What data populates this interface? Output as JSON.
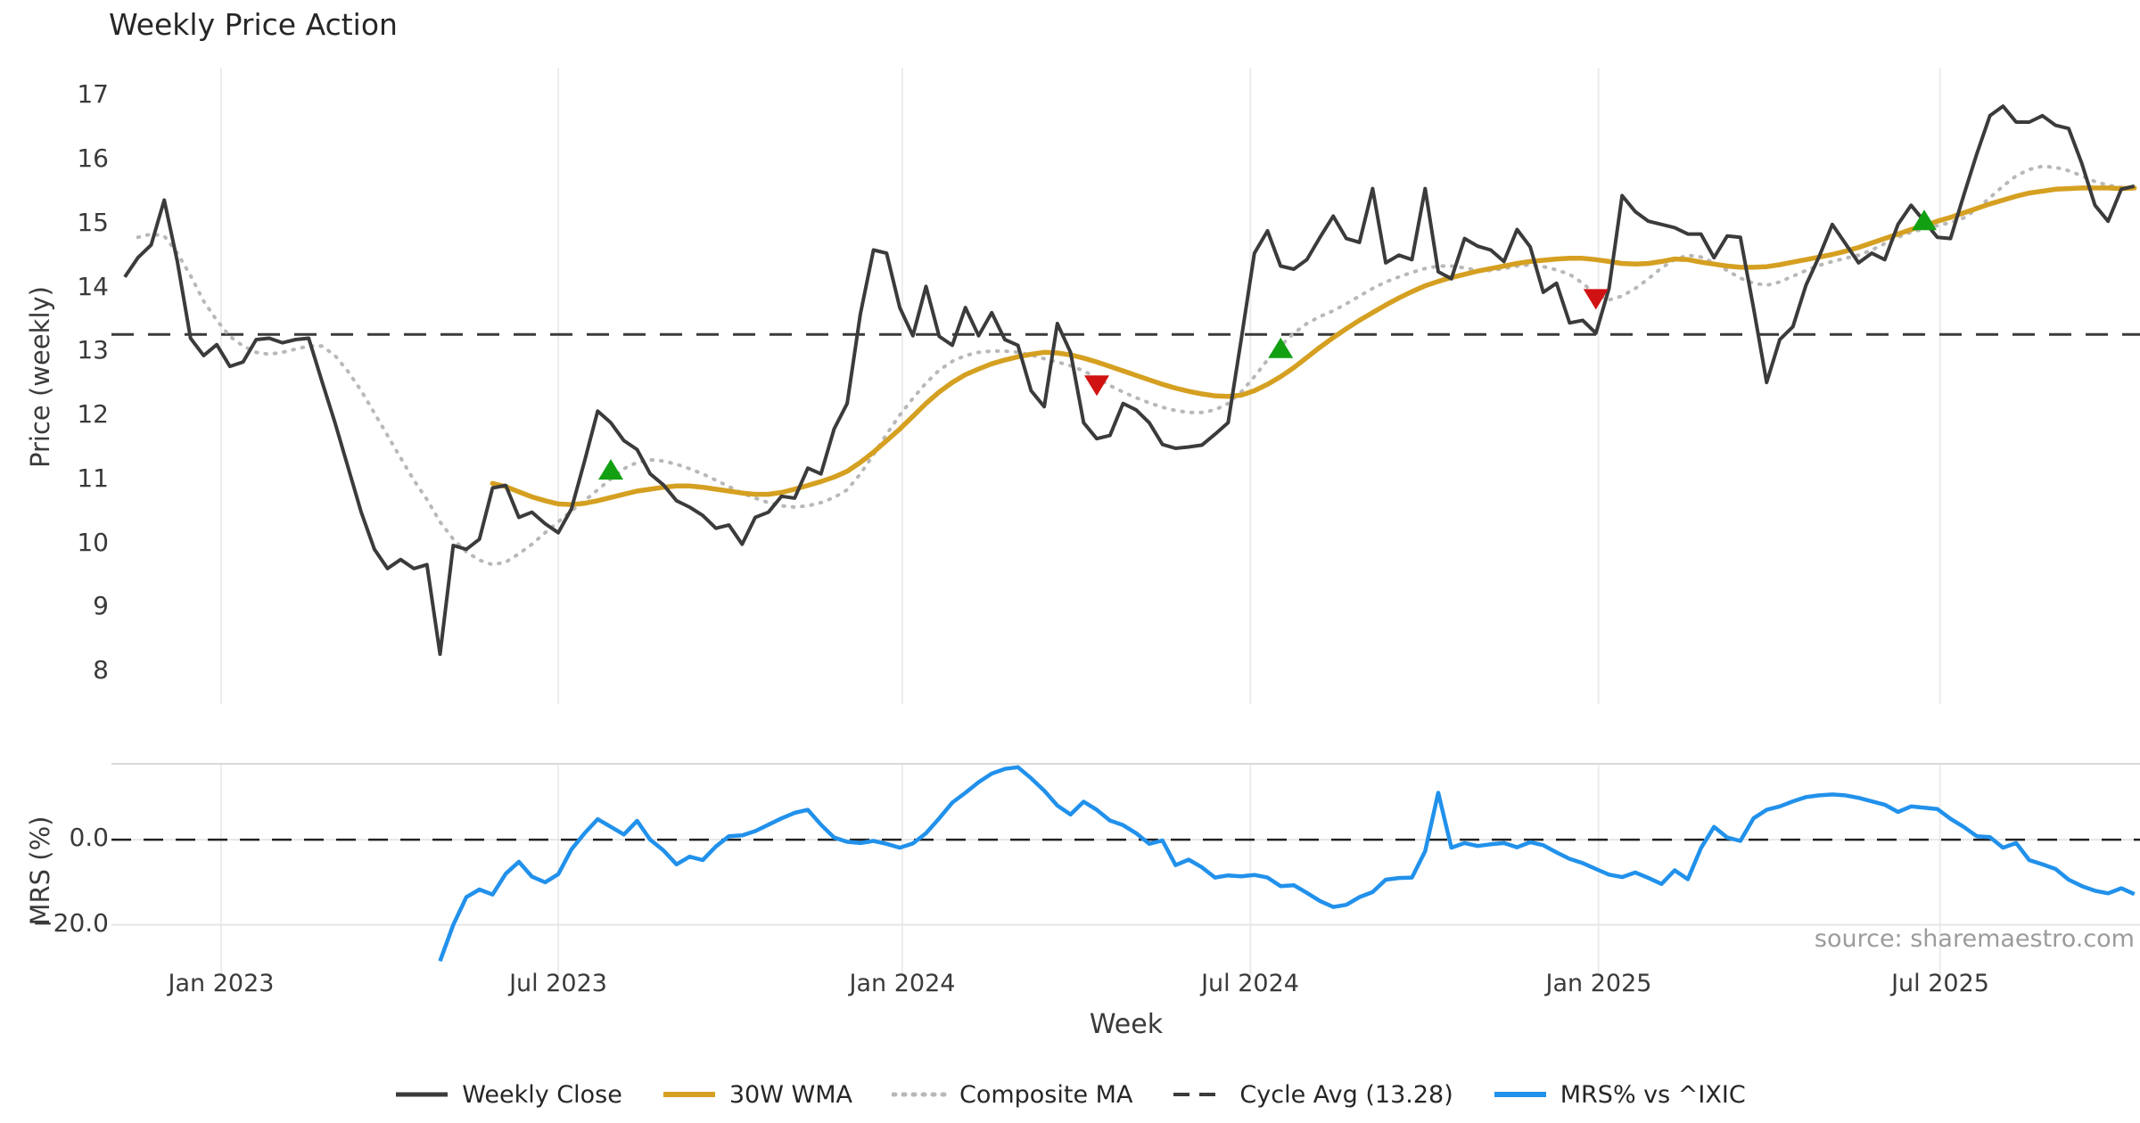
{
  "title": "Weekly Price Action",
  "source_text": "source: sharemaestro.com",
  "colors": {
    "close": "#3b3b3b",
    "wma": "#d5a021",
    "composite": "#b8b8b8",
    "cycle": "#3a3a3a",
    "mrs": "#2191eb",
    "buy": "#12a012",
    "sell": "#d11212",
    "grid": "#ececec",
    "mrs_grid": "#e6e6e6",
    "mrs_border": "#d9d9d9"
  },
  "legend": [
    {
      "label": "Weekly Close",
      "style": "solid",
      "color_key": "close",
      "width": 5
    },
    {
      "label": "30W WMA",
      "style": "solid",
      "color_key": "wma",
      "width": 6
    },
    {
      "label": "Composite MA",
      "style": "dotted",
      "color_key": "composite",
      "width": 5
    },
    {
      "label": "Cycle Avg (13.28)",
      "style": "dashed",
      "color_key": "cycle",
      "width": 4
    },
    {
      "label": "MRS% vs ^IXIC",
      "style": "solid",
      "color_key": "mrs",
      "width": 6
    }
  ],
  "chart_data": {
    "type": "line",
    "title": "Weekly Price Action",
    "xlabel": "Week",
    "x_ticks": [
      {
        "label": "Jan 2023",
        "week": 7.33
      },
      {
        "label": "Jul 2023",
        "week": 33.0
      },
      {
        "label": "Jan 2024",
        "week": 59.2
      },
      {
        "label": "Jul 2024",
        "week": 85.7
      },
      {
        "label": "Jan 2025",
        "week": 112.2
      },
      {
        "label": "Jul 2025",
        "week": 138.2
      }
    ],
    "price_panel": {
      "ylabel": "Price (weekly)",
      "ylim": [
        7.5,
        17.45
      ],
      "y_ticks": [
        8,
        9,
        10,
        11,
        12,
        13,
        14,
        15,
        16,
        17
      ],
      "cycle_avg": 13.28,
      "grid": "vertical-only",
      "series": [
        {
          "name": "Weekly Close",
          "values": [
            14.18,
            14.48,
            14.68,
            15.38,
            14.42,
            13.22,
            12.95,
            13.12,
            12.78,
            12.85,
            13.2,
            13.22,
            13.15,
            13.2,
            13.22,
            12.55,
            11.9,
            11.2,
            10.5,
            9.92,
            9.62,
            9.76,
            9.62,
            9.68,
            8.28,
            9.98,
            9.92,
            10.08,
            10.88,
            10.92,
            10.42,
            10.5,
            10.32,
            10.18,
            10.55,
            11.3,
            12.08,
            11.9,
            11.62,
            11.48,
            11.1,
            10.93,
            10.68,
            10.58,
            10.45,
            10.25,
            10.3,
            10.0,
            10.42,
            10.5,
            10.75,
            10.72,
            11.19,
            11.1,
            11.8,
            12.2,
            13.6,
            14.6,
            14.55,
            13.7,
            13.26,
            14.03,
            13.25,
            13.11,
            13.7,
            13.26,
            13.62,
            13.2,
            13.11,
            12.4,
            12.15,
            13.45,
            13.0,
            11.9,
            11.65,
            11.7,
            12.2,
            12.1,
            11.9,
            11.56,
            11.5,
            11.52,
            11.55,
            11.72,
            11.9,
            13.2,
            14.55,
            14.9,
            14.35,
            14.3,
            14.45,
            14.8,
            15.13,
            14.78,
            14.72,
            15.56,
            14.4,
            14.52,
            14.45,
            15.56,
            14.26,
            14.15,
            14.78,
            14.66,
            14.6,
            14.42,
            14.92,
            14.65,
            13.94,
            14.08,
            13.46,
            13.5,
            13.3,
            14.0,
            15.45,
            15.2,
            15.05,
            15.0,
            14.95,
            14.85,
            14.85,
            14.48,
            14.82,
            14.8,
            13.7,
            12.53,
            13.2,
            13.4,
            14.05,
            14.5,
            15.0,
            14.7,
            14.4,
            14.55,
            14.45,
            15.0,
            15.3,
            15.05,
            14.8,
            14.78,
            15.45,
            16.1,
            16.7,
            16.85,
            16.6,
            16.6,
            16.7,
            16.55,
            16.5,
            15.95,
            15.3,
            15.05,
            15.55,
            15.6
          ]
        },
        {
          "name": "30W WMA",
          "values": [
            null,
            null,
            null,
            null,
            null,
            null,
            null,
            null,
            null,
            null,
            null,
            null,
            null,
            null,
            null,
            null,
            null,
            null,
            null,
            null,
            null,
            null,
            null,
            null,
            null,
            null,
            null,
            null,
            10.95,
            10.9,
            10.82,
            10.74,
            10.68,
            10.63,
            10.62,
            10.64,
            10.68,
            10.73,
            10.78,
            10.83,
            10.86,
            10.89,
            10.91,
            10.91,
            10.89,
            10.86,
            10.83,
            10.8,
            10.78,
            10.78,
            10.81,
            10.86,
            10.92,
            10.98,
            11.05,
            11.14,
            11.28,
            11.44,
            11.62,
            11.8,
            12.0,
            12.2,
            12.38,
            12.53,
            12.65,
            12.74,
            12.82,
            12.88,
            12.93,
            12.97,
            13.0,
            12.99,
            12.96,
            12.91,
            12.85,
            12.78,
            12.71,
            12.64,
            12.57,
            12.5,
            12.44,
            12.39,
            12.35,
            12.32,
            12.31,
            12.33,
            12.4,
            12.5,
            12.62,
            12.76,
            12.92,
            13.08,
            13.23,
            13.37,
            13.5,
            13.62,
            13.74,
            13.85,
            13.95,
            14.04,
            14.11,
            14.17,
            14.22,
            14.27,
            14.31,
            14.35,
            14.39,
            14.42,
            14.44,
            14.46,
            14.47,
            14.47,
            14.45,
            14.42,
            14.39,
            14.38,
            14.39,
            14.42,
            14.46,
            14.45,
            14.41,
            14.38,
            14.35,
            14.33,
            14.33,
            14.34,
            14.37,
            14.41,
            14.45,
            14.49,
            14.53,
            14.58,
            14.64,
            14.71,
            14.78,
            14.85,
            14.92,
            14.98,
            15.05,
            15.11,
            15.18,
            15.25,
            15.32,
            15.38,
            15.44,
            15.49,
            15.52,
            15.55,
            15.56,
            15.57,
            15.57,
            15.57,
            15.56,
            15.57
          ]
        },
        {
          "name": "Composite MA",
          "values": [
            null,
            14.8,
            14.85,
            14.82,
            14.55,
            14.2,
            13.8,
            13.5,
            13.25,
            13.1,
            13.0,
            12.97,
            13.0,
            13.05,
            13.1,
            13.1,
            12.95,
            12.7,
            12.4,
            12.05,
            11.7,
            11.35,
            11.0,
            10.7,
            10.35,
            10.08,
            9.88,
            9.75,
            9.68,
            9.72,
            9.85,
            10.0,
            10.18,
            10.35,
            10.52,
            10.68,
            10.85,
            11.02,
            11.18,
            11.28,
            11.32,
            11.3,
            11.25,
            11.18,
            11.1,
            11.0,
            10.9,
            10.8,
            10.72,
            10.65,
            10.6,
            10.58,
            10.6,
            10.65,
            10.73,
            10.85,
            11.1,
            11.4,
            11.72,
            12.02,
            12.28,
            12.52,
            12.72,
            12.86,
            12.95,
            13.0,
            13.02,
            13.02,
            13.0,
            12.96,
            12.9,
            12.85,
            12.79,
            12.71,
            12.6,
            12.48,
            12.38,
            12.29,
            12.21,
            12.14,
            12.09,
            12.06,
            12.06,
            12.1,
            12.2,
            12.38,
            12.62,
            12.88,
            13.1,
            13.3,
            13.45,
            13.56,
            13.65,
            13.76,
            13.88,
            14.0,
            14.1,
            14.18,
            14.25,
            14.31,
            14.35,
            14.35,
            14.32,
            14.28,
            14.28,
            14.31,
            14.35,
            14.37,
            14.34,
            14.29,
            14.22,
            14.08,
            13.9,
            13.82,
            13.88,
            14.0,
            14.15,
            14.32,
            14.45,
            14.52,
            14.49,
            14.4,
            14.28,
            14.16,
            14.08,
            14.05,
            14.1,
            14.19,
            14.28,
            14.36,
            14.42,
            14.47,
            14.52,
            14.6,
            14.7,
            14.8,
            14.88,
            14.93,
            14.98,
            15.03,
            15.1,
            15.24,
            15.42,
            15.6,
            15.76,
            15.86,
            15.91,
            15.89,
            15.84,
            15.76,
            15.67,
            15.61,
            15.58,
            15.57
          ]
        }
      ],
      "markers": {
        "buy": [
          {
            "week": 37,
            "price": 11.15
          },
          {
            "week": 88,
            "price": 13.05
          },
          {
            "week": 137,
            "price": 15.05
          }
        ],
        "sell": [
          {
            "week": 74,
            "price": 12.5
          },
          {
            "week": 112,
            "price": 13.85
          }
        ]
      }
    },
    "mrs_panel": {
      "ylabel": "MRS (%)",
      "ylim": [
        -32,
        17.8
      ],
      "y_ticks": [
        {
          "label": "0.0",
          "value": 0
        },
        {
          "label": "−20.0",
          "value": -20
        }
      ],
      "zero_dashed_line": 0,
      "series": [
        {
          "name": "MRS% vs ^IXIC",
          "values": [
            null,
            null,
            null,
            null,
            null,
            null,
            null,
            null,
            null,
            null,
            null,
            null,
            null,
            null,
            null,
            null,
            null,
            null,
            null,
            null,
            null,
            null,
            null,
            null,
            -28.5,
            -20.0,
            -13.5,
            -11.7,
            -12.9,
            -8.0,
            -5.2,
            -8.7,
            -10.0,
            -8.1,
            -2.3,
            1.5,
            4.8,
            3.0,
            1.2,
            4.4,
            0.0,
            -2.5,
            -5.8,
            -4.0,
            -4.8,
            -1.6,
            0.8,
            1.0,
            2.0,
            3.5,
            5.0,
            6.3,
            7.0,
            3.5,
            0.5,
            -0.5,
            -0.8,
            -0.3,
            -1.0,
            -1.9,
            -0.9,
            1.5,
            5.0,
            8.7,
            11.0,
            13.5,
            15.5,
            16.6,
            17.0,
            14.4,
            11.5,
            8.0,
            5.9,
            8.9,
            7.0,
            4.5,
            3.4,
            1.5,
            -1.0,
            -0.2,
            -6.0,
            -4.7,
            -6.5,
            -8.9,
            -8.4,
            -8.6,
            -8.3,
            -8.9,
            -10.9,
            -10.7,
            -12.5,
            -14.4,
            -15.8,
            -15.3,
            -13.5,
            -12.3,
            -9.4,
            -9.0,
            -8.9,
            -2.7,
            11.0,
            -1.9,
            -0.8,
            -1.5,
            -1.1,
            -0.8,
            -1.8,
            -0.6,
            -1.3,
            -3.0,
            -4.5,
            -5.5,
            -6.9,
            -8.2,
            -8.8,
            -7.7,
            -9.0,
            -10.4,
            -7.2,
            -9.3,
            -2.0,
            3.0,
            0.5,
            -0.3,
            5.0,
            7.0,
            7.8,
            9.0,
            10.0,
            10.4,
            10.6,
            10.4,
            9.8,
            9.0,
            8.2,
            6.5,
            7.8,
            7.5,
            7.2,
            4.9,
            3.0,
            0.8,
            0.6,
            -1.9,
            -0.8,
            -4.8,
            -5.8,
            -6.9,
            -9.4,
            -10.9,
            -12.0,
            -12.6,
            -11.4,
            -12.8
          ]
        }
      ]
    }
  }
}
